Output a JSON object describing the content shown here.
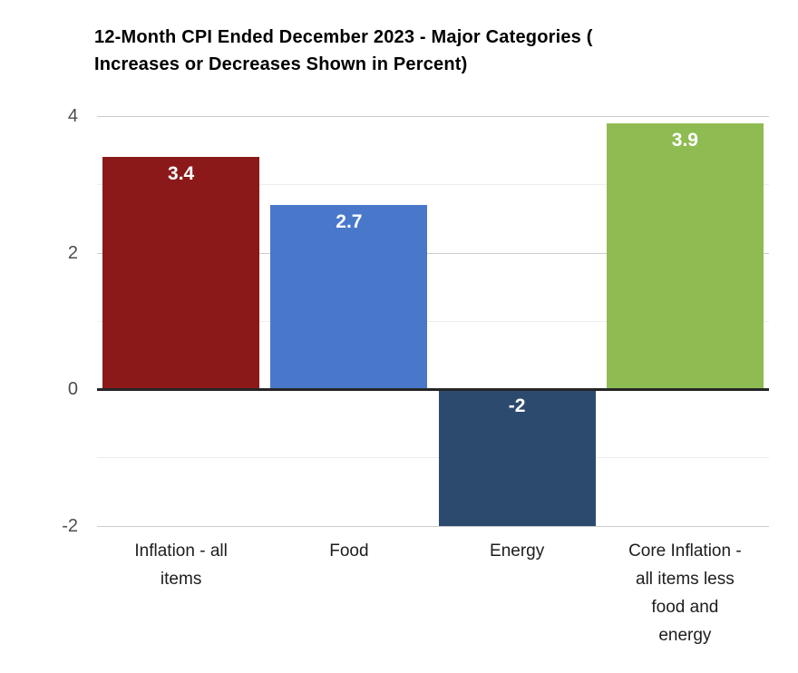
{
  "chart": {
    "title_line1": "12-Month CPI Ended December 2023 - Major Categories (",
    "title_line2": "Increases or Decreases Shown in Percent)"
  },
  "chart_data": {
    "type": "bar",
    "title": "12-Month CPI Ended December 2023 - Major Categories ( Increases or Decreases Shown in Percent)",
    "categories": [
      "Inflation - all items",
      "Food",
      "Energy",
      "Core Inflation - all items less food and energy"
    ],
    "category_lines": [
      [
        "Inflation - all",
        "items"
      ],
      [
        "Food"
      ],
      [
        "Energy"
      ],
      [
        "Core Inflation -",
        "all items less",
        "food and",
        "energy"
      ]
    ],
    "values": [
      3.4,
      2.7,
      -2,
      3.9
    ],
    "data_labels": [
      "3.4",
      "2.7",
      "-2",
      "3.9"
    ],
    "bar_colors": [
      "#8b1919",
      "#4978cb",
      "#2c4a6e",
      "#8fbc52"
    ],
    "xlabel": "",
    "ylabel": "",
    "ylim": [
      -2,
      4
    ],
    "yticks": [
      4,
      2,
      0,
      -2
    ],
    "minor_grid_values": [
      3,
      1,
      -1
    ],
    "baseline": 0,
    "grid": "horizontal, major and minor, legend off",
    "legend": "none"
  },
  "colors": {
    "background": "#ffffff",
    "title": "#000000",
    "major_grid": "#cccccc",
    "minor_grid": "#ededed",
    "zero_line": "#262626",
    "axis_label": "#4c4c4c",
    "category_label": "#1d1d1d",
    "data_label": "#ffffff"
  }
}
